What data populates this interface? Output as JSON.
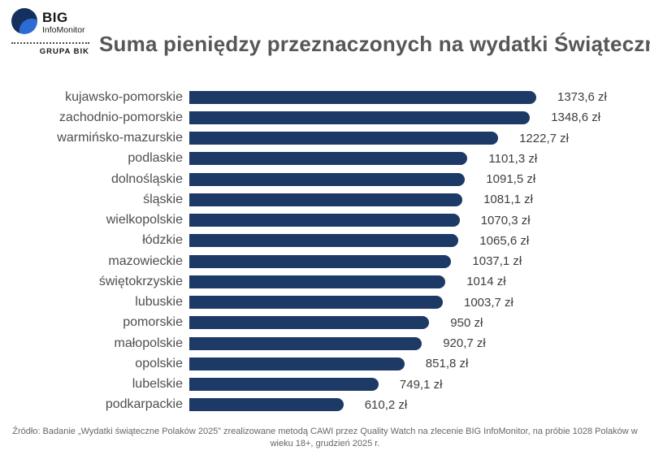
{
  "header": {
    "logo": {
      "brand": "BIG",
      "sub_brand": "InfoMonitor",
      "group": "GRUPA BIK"
    },
    "title": "Suma pieniędzy przeznaczonych na wydatki Świąteczne"
  },
  "chart_data": {
    "type": "bar",
    "orientation": "horizontal",
    "title": "Suma pieniędzy przeznaczonych na wydatki Świąteczne",
    "unit": "zł",
    "xlim": [
      0,
      1373.6
    ],
    "grid": false,
    "legend": false,
    "bar_color": "#1d3a67",
    "categories": [
      "kujawsko-pomorskie",
      "zachodnio-pomorskie",
      "warmińsko-mazurskie",
      "podlaskie",
      "dolnośląskie",
      "śląskie",
      "wielkopolskie",
      "łódzkie",
      "mazowieckie",
      "świętokrzyskie",
      "lubuskie",
      "pomorskie",
      "małopolskie",
      "opolskie",
      "lubelskie",
      "podkarpackie"
    ],
    "values": [
      1373.6,
      1348.6,
      1222.7,
      1101.3,
      1091.5,
      1081.1,
      1070.3,
      1065.6,
      1037.1,
      1014,
      1003.7,
      950,
      920.7,
      851.8,
      749.1,
      610.2
    ],
    "value_labels": [
      "1373,6 zł",
      "1348,6 zł",
      "1222,7 zł",
      "1101,3 zł",
      "1091,5 zł",
      "1081,1 zł",
      "1070,3 zł",
      "1065,6 zł",
      "1037,1 zł",
      "1014 zł",
      "1003,7 zł",
      "950 zł",
      "920,7 zł",
      "851,8 zł",
      "749,1 zł",
      "610,2 zł"
    ]
  },
  "footer": {
    "source": "Źródło: Badanie „Wydatki świąteczne Polaków 2025” zrealizowane metodą CAWI przez Quality Watch na zlecenie BIG InfoMonitor, na próbie 1028 Polaków w wieku 18+, grudzień 2025 r."
  }
}
